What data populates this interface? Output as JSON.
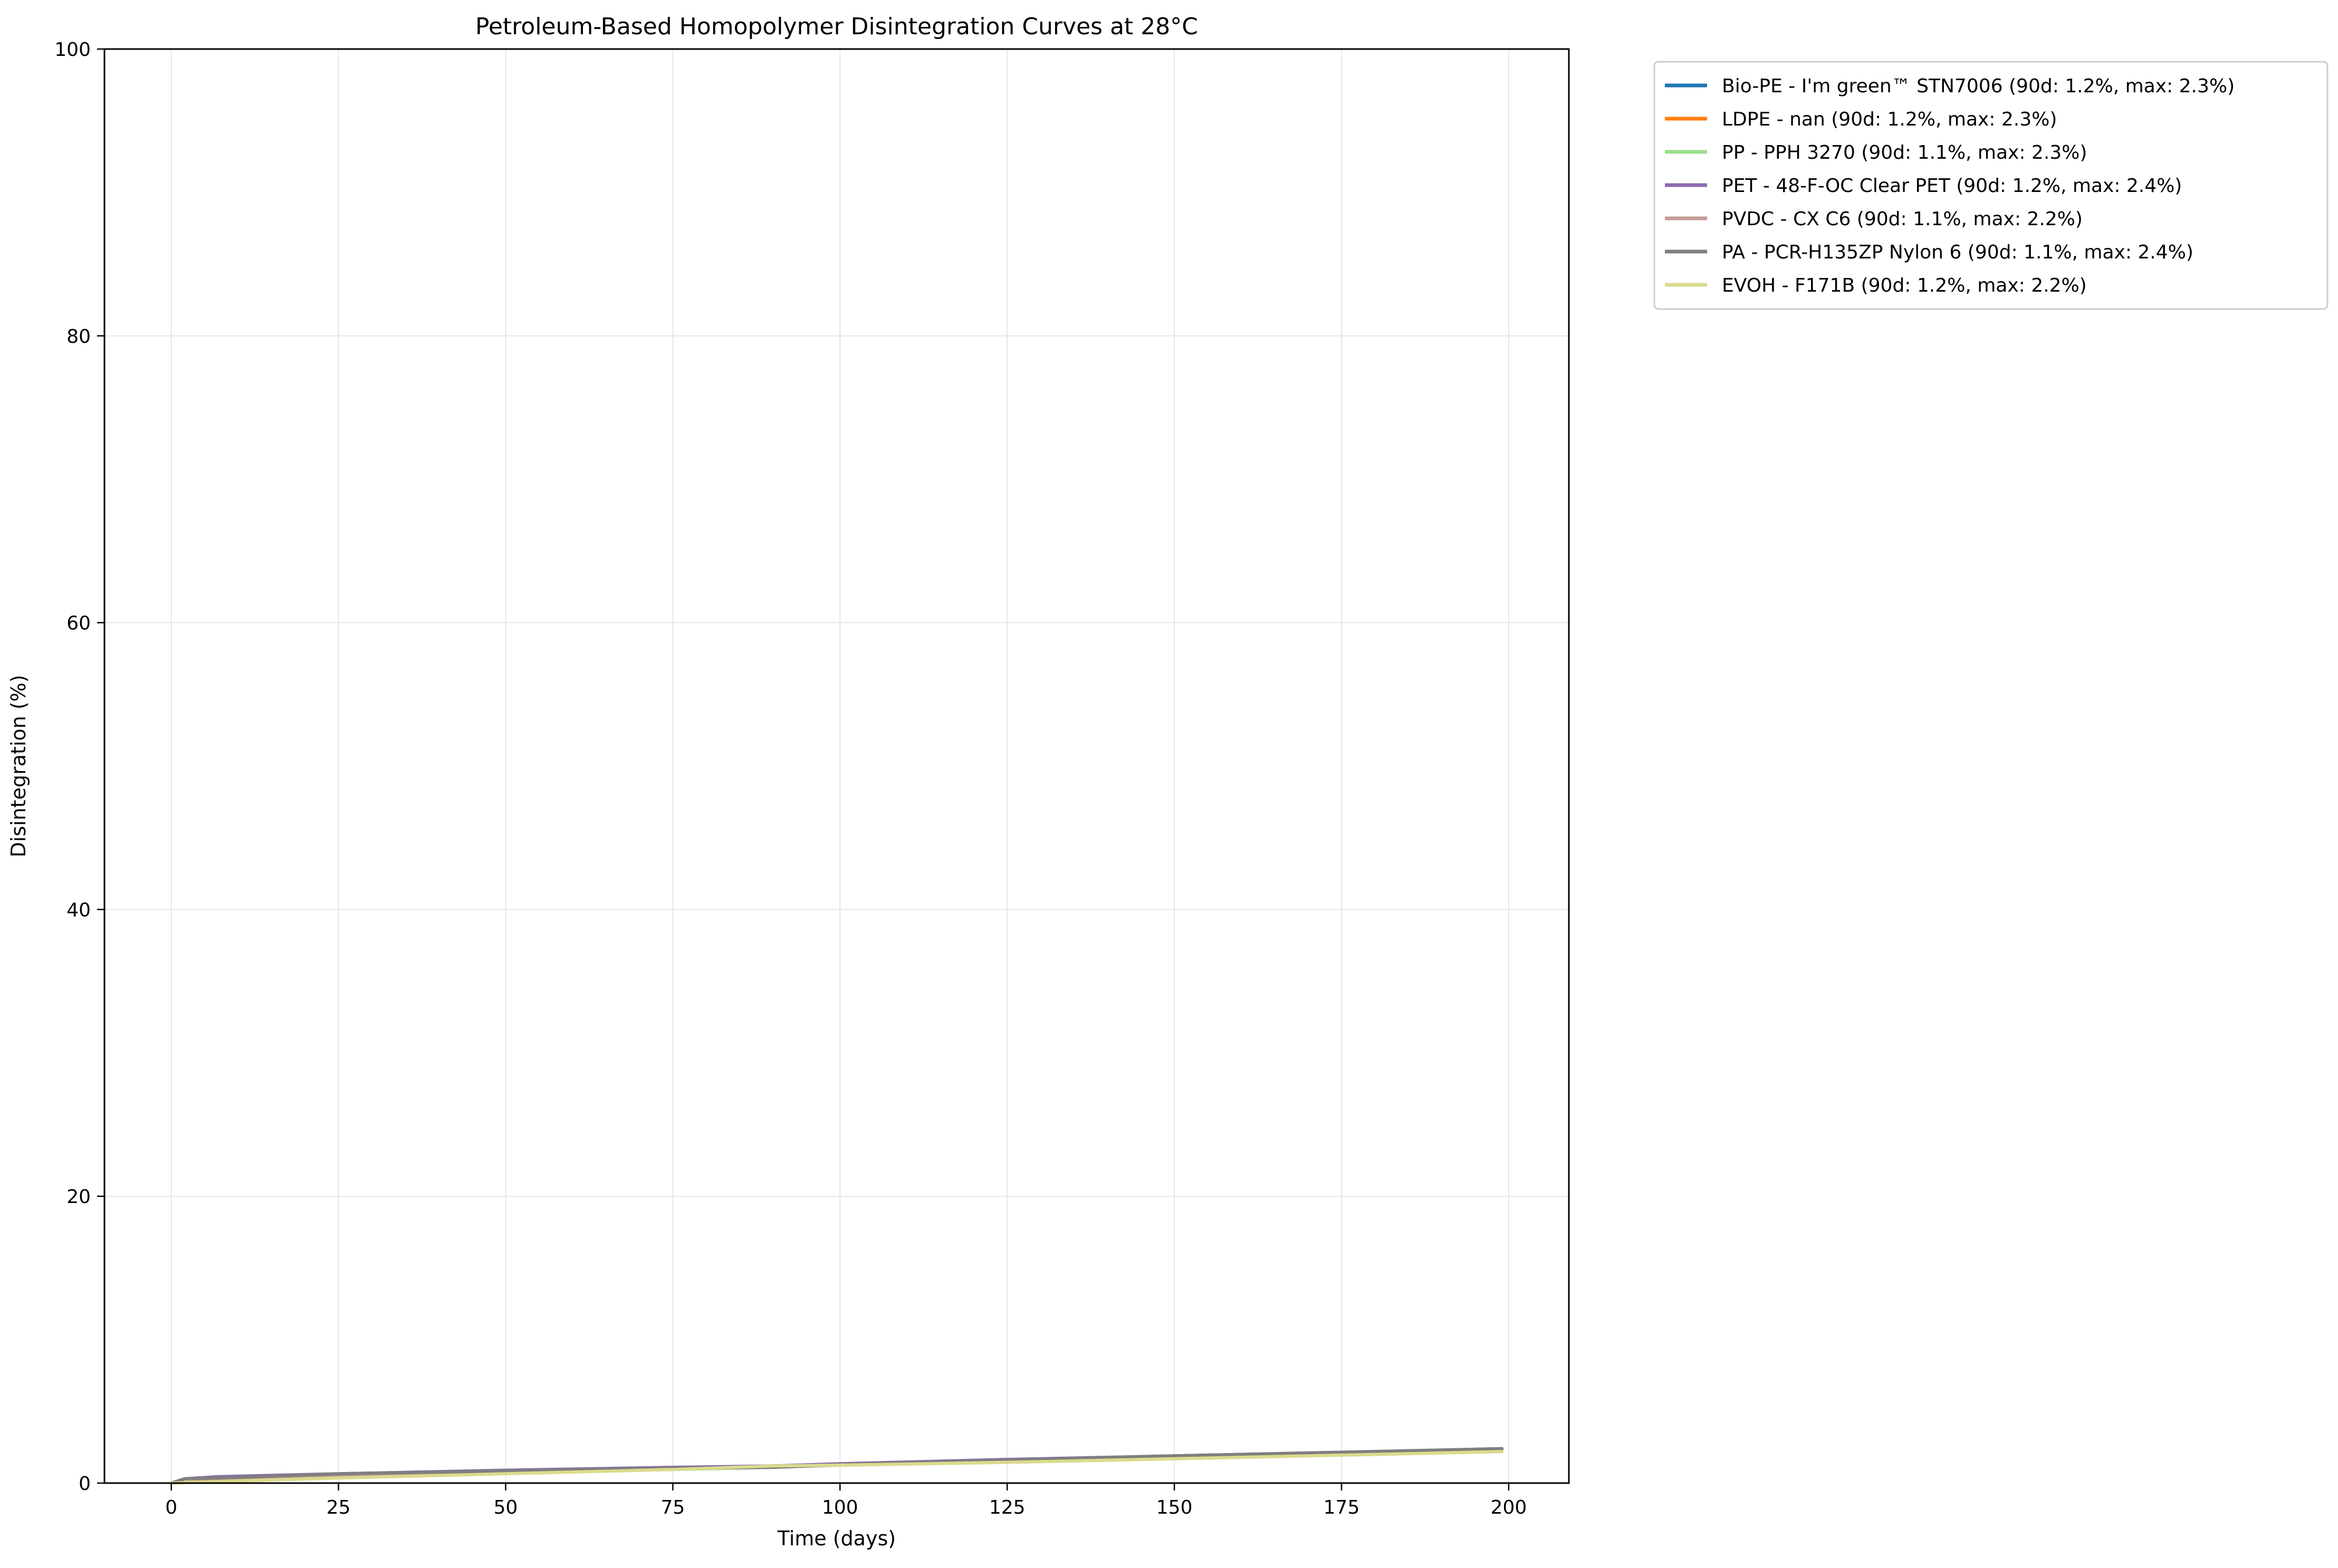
{
  "chart_data": {
    "type": "line",
    "title": "Petroleum-Based Homopolymer Disintegration Curves at 28°C",
    "xlabel": "Time (days)",
    "ylabel": "Disintegration (%)",
    "xlim": [
      -10,
      209
    ],
    "ylim": [
      0,
      100
    ],
    "xticks": [
      0,
      25,
      50,
      75,
      100,
      125,
      150,
      175,
      200
    ],
    "xtick_labels": [
      "0",
      "25",
      "50",
      "75",
      "100",
      "125",
      "150",
      "175",
      "200"
    ],
    "yticks": [
      0,
      20,
      40,
      60,
      80,
      100
    ],
    "ytick_labels": [
      "0",
      "20",
      "40",
      "60",
      "80",
      "100"
    ],
    "grid": true,
    "legend_position": "outside-top-right",
    "series": [
      {
        "name": "Bio-PE - I'm green™ STN7006 (90d: 1.2%, max: 2.3%)",
        "color": "#1f77b4",
        "x": [
          0,
          10,
          25,
          50,
          75,
          90,
          100,
          125,
          150,
          175,
          199
        ],
        "y": [
          0,
          0.25,
          0.45,
          0.75,
          1.0,
          1.2,
          1.3,
          1.55,
          1.8,
          2.05,
          2.3
        ]
      },
      {
        "name": "LDPE - nan (90d: 1.2%, max: 2.3%)",
        "color": "#ff7f0e",
        "x": [
          0,
          10,
          25,
          50,
          75,
          90,
          100,
          125,
          150,
          175,
          199
        ],
        "y": [
          0,
          0.25,
          0.45,
          0.75,
          1.0,
          1.2,
          1.3,
          1.55,
          1.8,
          2.05,
          2.3
        ]
      },
      {
        "name": "PP - PPH 3270 (90d: 1.1%, max: 2.3%)",
        "color": "#98df8a",
        "x": [
          0,
          10,
          25,
          50,
          75,
          90,
          100,
          125,
          150,
          175,
          199
        ],
        "y": [
          0,
          0.2,
          0.4,
          0.7,
          0.95,
          1.1,
          1.25,
          1.5,
          1.75,
          2.0,
          2.3
        ]
      },
      {
        "name": "PET - 48-F-OC Clear PET (90d: 1.2%, max: 2.4%)",
        "color": "#8c6bb1",
        "x": [
          0,
          2,
          7,
          25,
          50,
          75,
          90,
          100,
          125,
          150,
          175,
          199
        ],
        "y": [
          0,
          0.3,
          0.45,
          0.65,
          0.9,
          1.1,
          1.2,
          1.35,
          1.65,
          1.9,
          2.15,
          2.4
        ]
      },
      {
        "name": "PVDC - CX C6 (90d: 1.1%, max: 2.2%)",
        "color": "#c49c94",
        "x": [
          0,
          10,
          25,
          50,
          75,
          90,
          100,
          125,
          150,
          175,
          199
        ],
        "y": [
          0,
          0.2,
          0.45,
          0.75,
          1.0,
          1.1,
          1.25,
          1.45,
          1.7,
          1.95,
          2.2
        ]
      },
      {
        "name": "PA - PCR-H135ZP Nylon 6 (90d: 1.1%, max: 2.4%)",
        "color": "#7f7f7f",
        "x": [
          0,
          2,
          10,
          25,
          50,
          75,
          90,
          100,
          125,
          150,
          175,
          199
        ],
        "y": [
          0,
          0.3,
          0.4,
          0.65,
          0.85,
          1.05,
          1.1,
          1.3,
          1.6,
          1.9,
          2.15,
          2.4
        ]
      },
      {
        "name": "EVOH - F171B (90d: 1.2%, max: 2.2%)",
        "color": "#dbdb8d",
        "x": [
          0,
          10,
          25,
          50,
          75,
          90,
          100,
          125,
          150,
          175,
          199
        ],
        "y": [
          0,
          0.15,
          0.35,
          0.65,
          0.95,
          1.2,
          1.25,
          1.45,
          1.7,
          1.95,
          2.2
        ]
      }
    ]
  }
}
